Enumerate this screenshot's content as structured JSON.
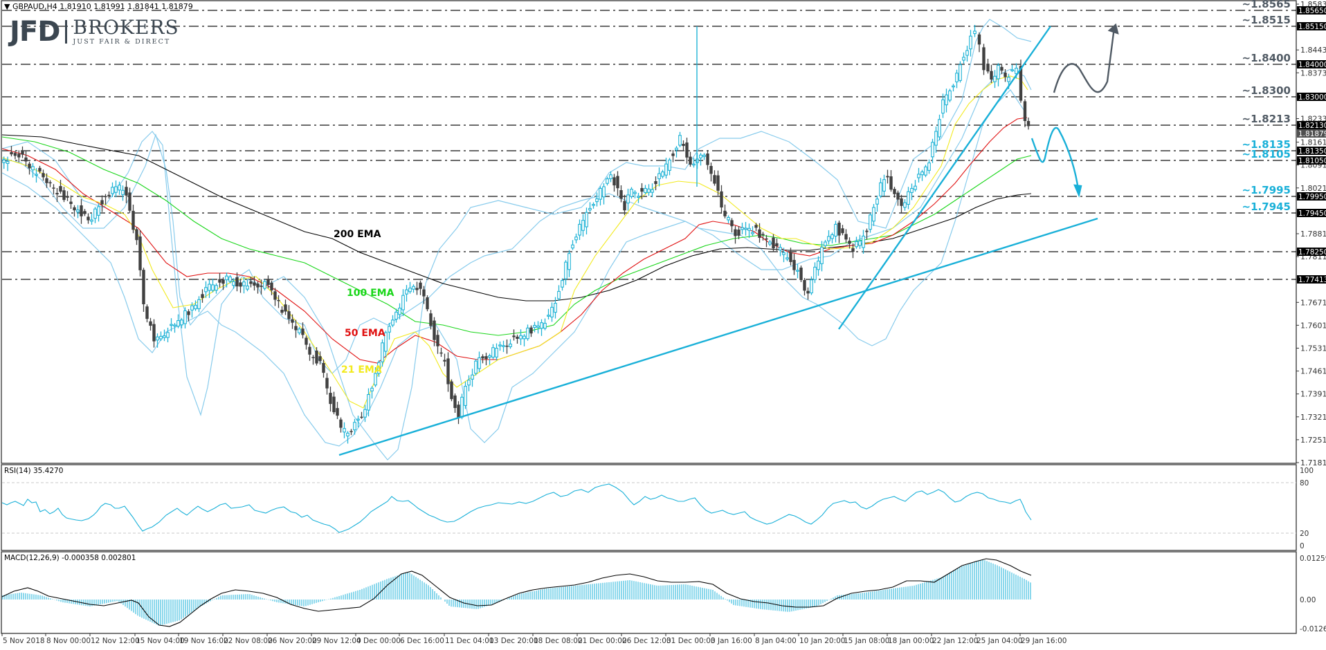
{
  "header": {
    "symbol_line": "GBPAUD,H4  1.81910 1.81991 1.81841 1.81879"
  },
  "logo": {
    "brand": "JFD",
    "name": "BROKERS",
    "tagline": "JUST FAIR & DIRECT"
  },
  "indicators": {
    "rsi_label": "RSI(14) 35.4270",
    "macd_label": "MACD(12,26,9) -0.000358 0.002801"
  },
  "ema_labels": {
    "ema200": "200 EMA",
    "ema100": "100 EMA",
    "ema50": "50 EMA",
    "ema21": "21 EMA"
  },
  "colors": {
    "bull_candle": "#1fb3d6",
    "bear_candle": "#404040",
    "bollinger": "#87cbec",
    "ema21": "#f2ea1e",
    "ema50": "#e01010",
    "ema100": "#19d619",
    "ema200": "#000000",
    "trendline": "#19b0d8",
    "level_dark": "#505a64",
    "level_blue": "#19b0d8"
  },
  "chart_data": [
    {
      "type": "candlestick",
      "title": "GBPAUD, H4",
      "ohlc_last": {
        "open": 1.8191,
        "high": 1.81991,
        "low": 1.81841,
        "close": 1.81879
      },
      "ylim": [
        1.7181,
        1.8583
      ],
      "y_ticks": [
        "1.85830",
        "1.84430",
        "1.83730",
        "1.82330",
        "1.81610",
        "1.80910",
        "1.80210",
        "1.78810",
        "1.78110",
        "1.76710",
        "1.76010",
        "1.75310",
        "1.74610",
        "1.73910",
        "1.73210",
        "1.72510",
        "1.71810"
      ],
      "x_ticks": [
        "5 Nov 2018",
        "8 Nov 00:00",
        "12 Nov 12:00",
        "15 Nov 04:00",
        "19 Nov 16:00",
        "22 Nov 08:00",
        "26 Nov 20:00",
        "29 Nov 12:00",
        "4 Dec 00:00",
        "6 Dec 16:00",
        "11 Dec 04:00",
        "13 Dec 20:00",
        "18 Dec 08:00",
        "21 Dec 00:00",
        "26 Dec 12:00",
        "31 Dec 00:00",
        "3 Jan 16:00",
        "8 Jan 04:00",
        "10 Jan 20:00",
        "15 Jan 08:00",
        "18 Jan 00:00",
        "22 Jan 12:00",
        "25 Jan 04:00",
        "29 Jan 16:00"
      ],
      "horizontal_levels": [
        {
          "label": "~1.8565",
          "axis_tag": "1.85650",
          "color": "dark"
        },
        {
          "label": "~1.8515",
          "axis_tag": "1.85150",
          "color": "dark"
        },
        {
          "label": "~1.8400",
          "axis_tag": "1.84000",
          "color": "dark"
        },
        {
          "label": "~1.8300",
          "axis_tag": "1.83000",
          "color": "dark"
        },
        {
          "label": "~1.8213",
          "axis_tag": "1.82130",
          "color": "dark"
        },
        {
          "label": "~1.8135",
          "axis_tag": "1.81350",
          "color": "blue"
        },
        {
          "label": "~1.8105",
          "axis_tag": "1.81050",
          "color": "blue"
        },
        {
          "label": "~1.7995",
          "axis_tag": "1.79950",
          "color": "blue"
        },
        {
          "label": "~1.7945",
          "axis_tag": "1.79450",
          "color": "blue"
        },
        {
          "label": "",
          "axis_tag": "1.78250",
          "color": "none"
        },
        {
          "label": "",
          "axis_tag": "1.77413",
          "color": "none"
        }
      ],
      "current_price_tag": "1.81879",
      "overlays": [
        "Bollinger Bands",
        "21 EMA",
        "50 EMA",
        "100 EMA",
        "200 EMA"
      ],
      "annotations": [
        "upward trendline from 29 Nov low",
        "steep trendline from 10 Jan low (broken)",
        "bullish scenario arrow toward ~1.8515",
        "bearish scenario arrow toward ~1.7995"
      ]
    },
    {
      "type": "line",
      "title": "RSI(14) 35.4270",
      "ylim": [
        0,
        100
      ],
      "y_ticks": [
        "100",
        "80",
        "20",
        "0"
      ],
      "last_value": 35.427
    },
    {
      "type": "bar+line",
      "title": "MACD(12,26,9) -0.000358 0.002801",
      "ylim": [
        -0.012643,
        0.012592
      ],
      "y_ticks": [
        "0.012592",
        "0.00",
        "-0.012643"
      ],
      "macd_value": -0.000358,
      "signal_value": 0.002801
    }
  ]
}
